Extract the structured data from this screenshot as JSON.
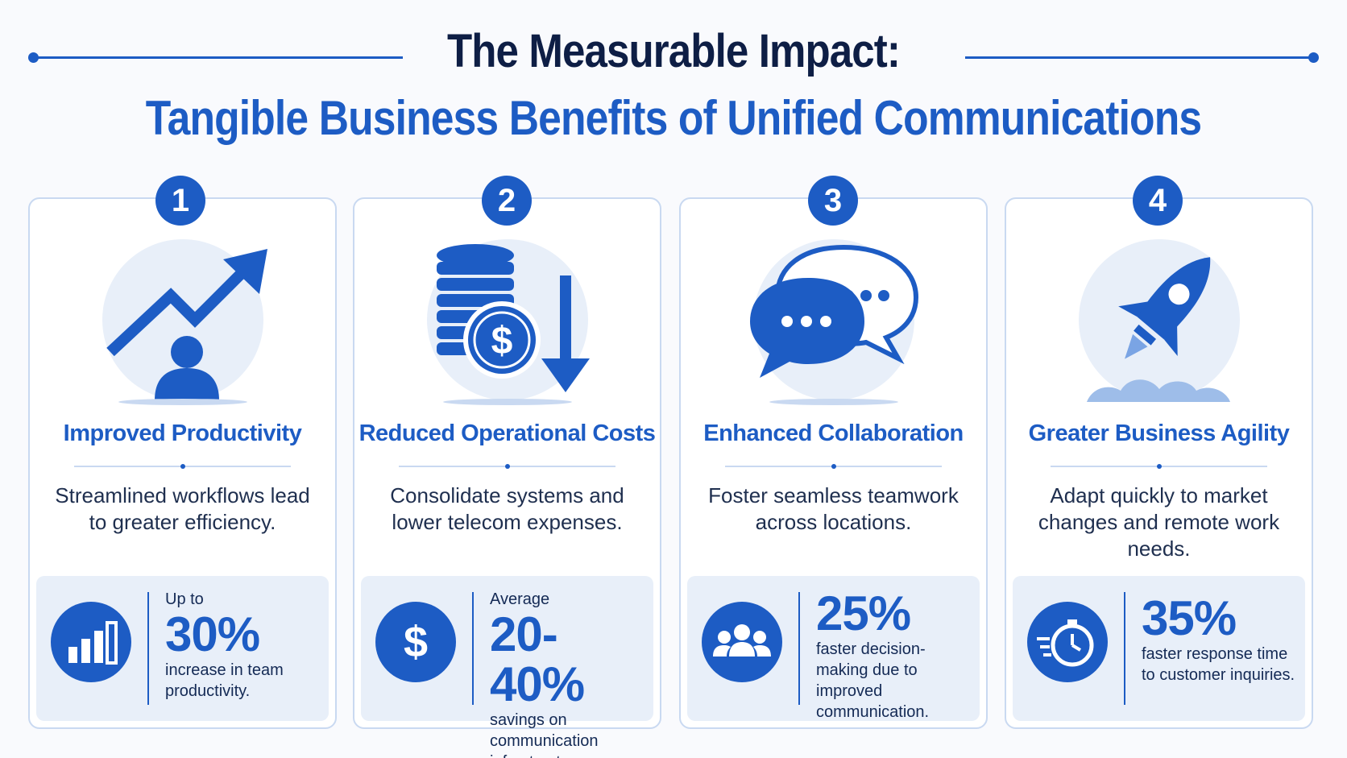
{
  "header": {
    "title_line1": "The Measurable Impact:",
    "title_line2": "Tangible Business Benefits of Unified Communications"
  },
  "colors": {
    "accent": "#1d5cc4",
    "dark": "#0e1e45",
    "soft": "#e8eff9",
    "border": "#c9d9f1"
  },
  "cards": [
    {
      "number": "1",
      "icon": "trend-arrow-person-icon",
      "title": "Improved Productivity",
      "description": "Streamlined workflows lead to greater efficiency.",
      "stat": {
        "icon": "bar-chart-icon",
        "prefix": "Up to",
        "value": "30%",
        "note": "increase in team productivity."
      }
    },
    {
      "number": "2",
      "icon": "coins-dollar-down-arrow-icon",
      "title": "Reduced Operational Costs",
      "description": "Consolidate systems and lower telecom expenses.",
      "stat": {
        "icon": "dollar-icon",
        "prefix": "Average",
        "value": "20-40%",
        "note": "savings on communication infrastructure."
      }
    },
    {
      "number": "3",
      "icon": "chat-bubbles-icon",
      "title": "Enhanced Collaboration",
      "description": "Foster seamless teamwork across locations.",
      "stat": {
        "icon": "team-icon",
        "prefix": "",
        "value": "25%",
        "note": "faster decision-making due to improved communication."
      }
    },
    {
      "number": "4",
      "icon": "rocket-icon",
      "title": "Greater Business Agility",
      "description": "Adapt quickly to market changes and remote work needs.",
      "stat": {
        "icon": "stopwatch-icon",
        "prefix": "",
        "value": "35%",
        "note": "faster response time to customer inquiries."
      }
    }
  ]
}
